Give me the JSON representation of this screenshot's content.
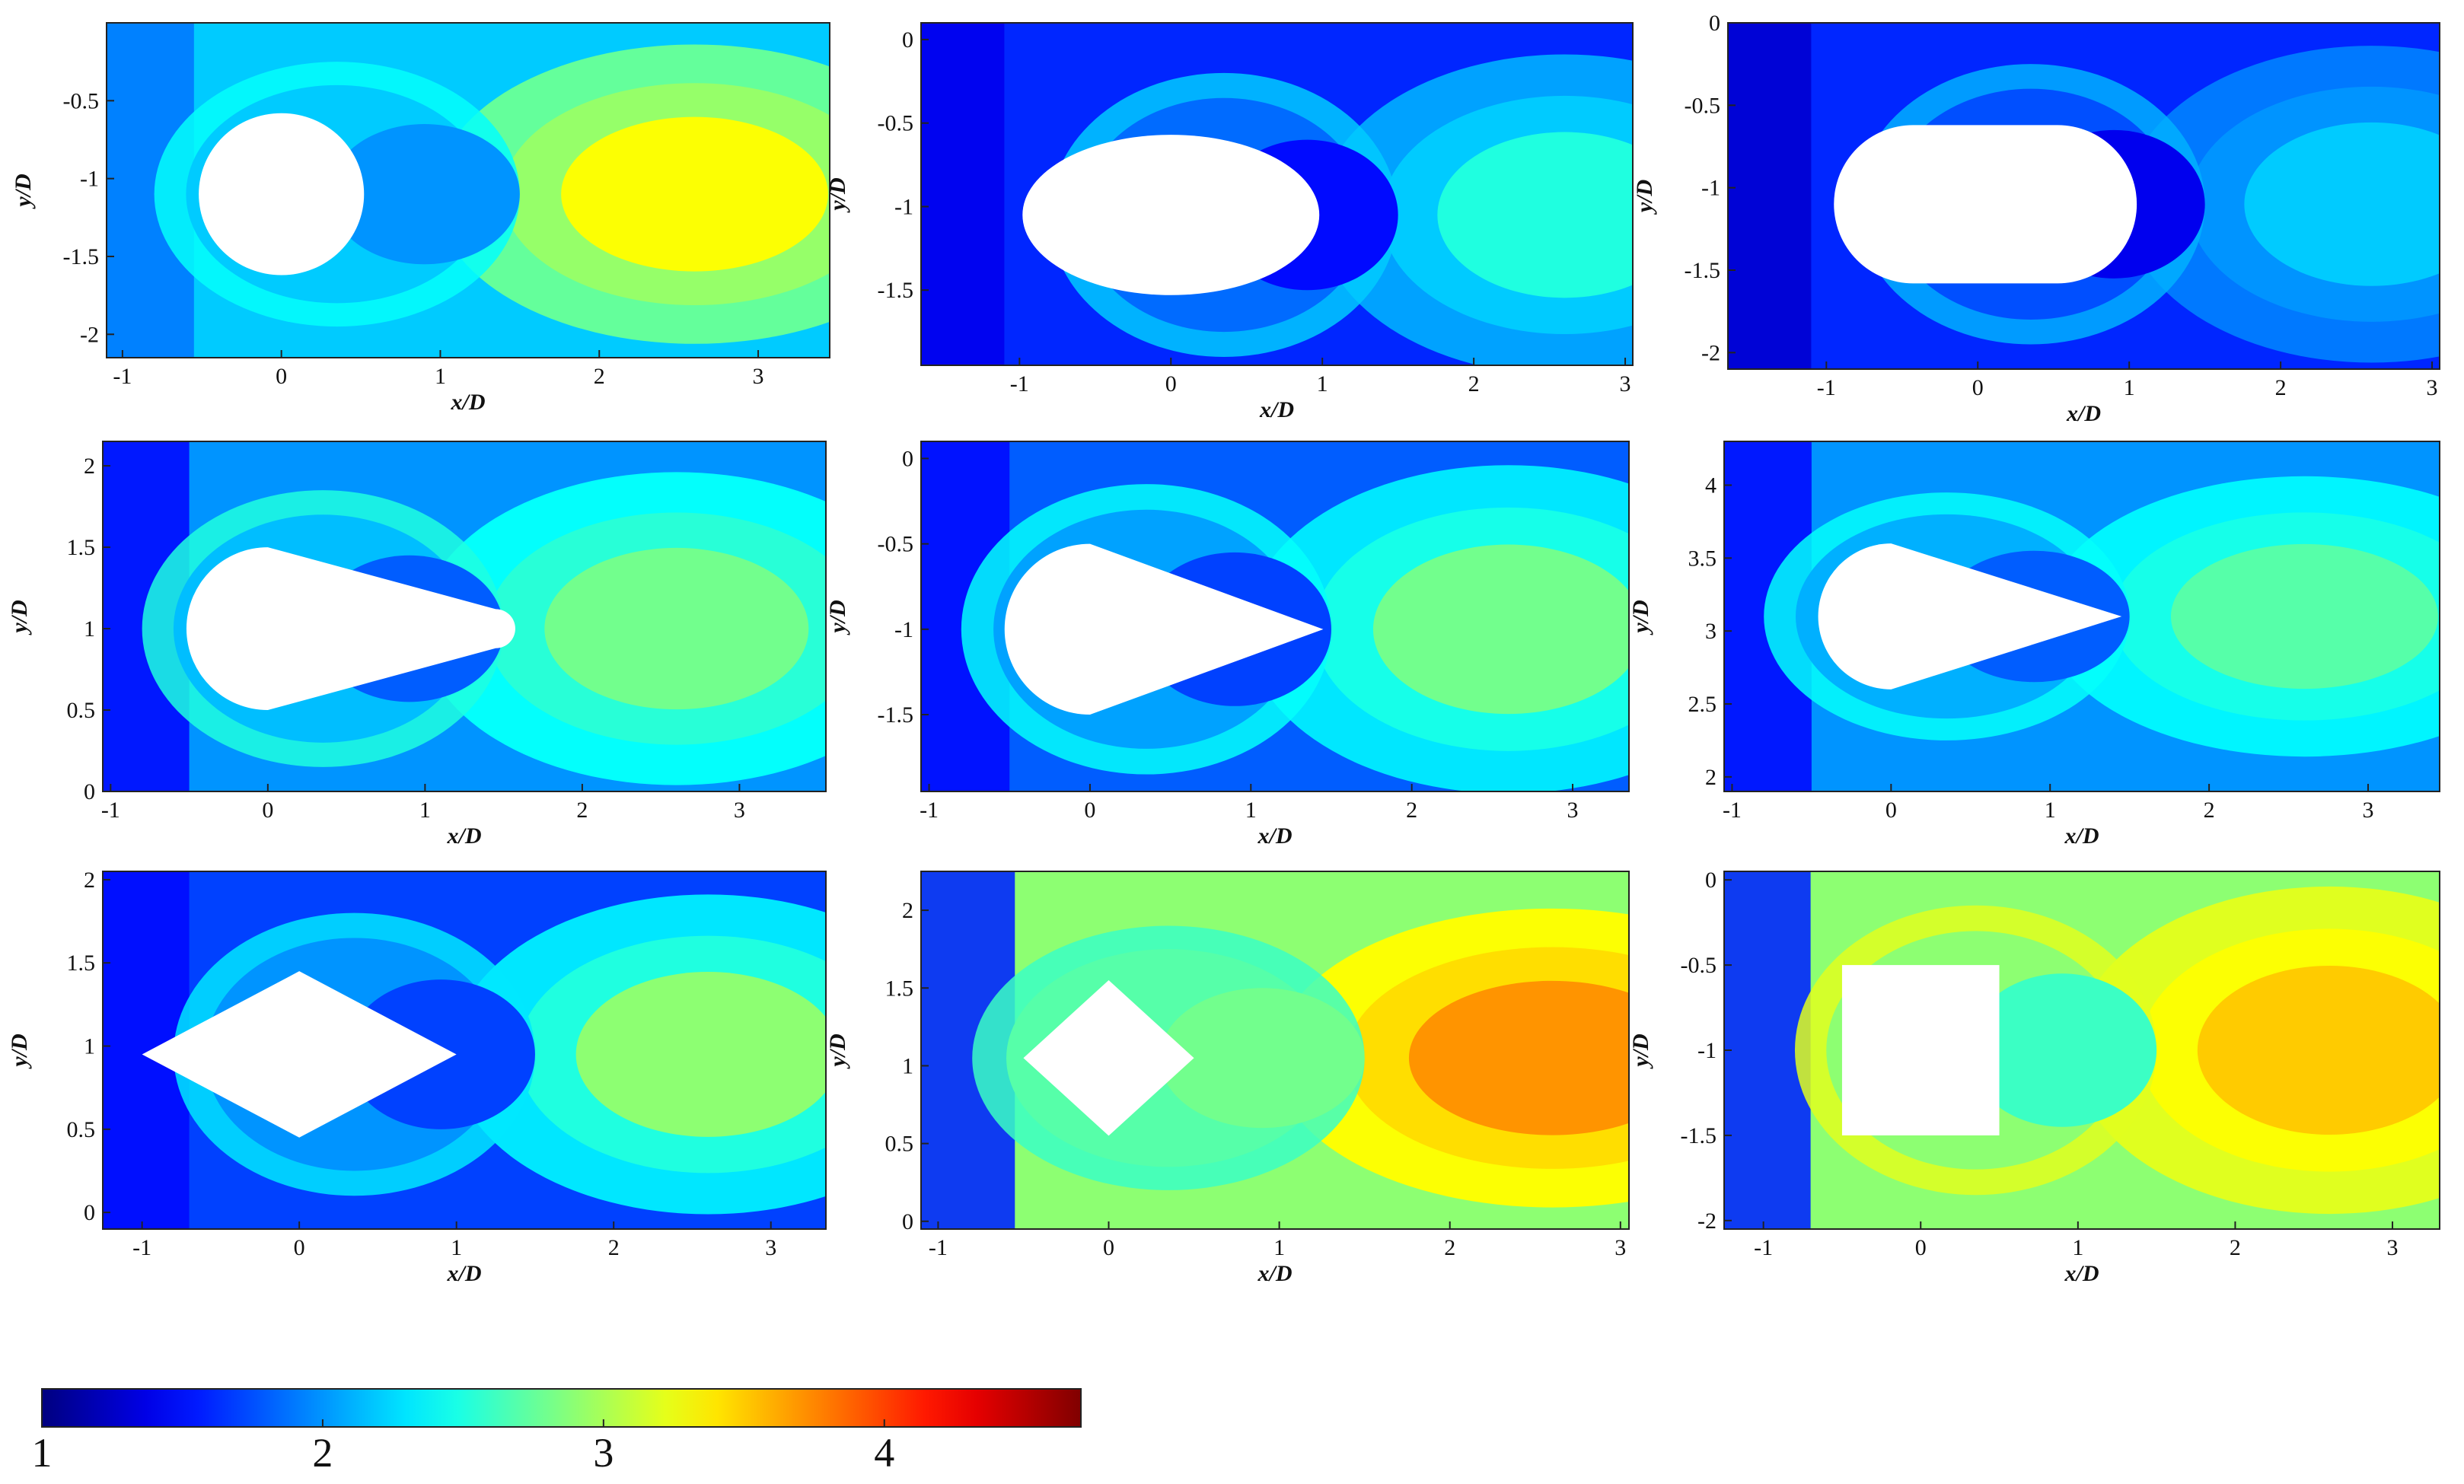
{
  "chart_data": [
    {
      "type": "heatmap",
      "shape": "circle",
      "xlabel": "x/D",
      "ylabel": "y/D",
      "xlim": [
        -1.1,
        3.45
      ],
      "ylim": [
        -2.15,
        0
      ],
      "xticks": [
        -1,
        0,
        1,
        2,
        3
      ],
      "yticks": [
        -0.5,
        -1,
        -1.5,
        -2
      ],
      "obstacle_center": [
        0,
        -1.1
      ],
      "levels": {
        "upstream": 1.9,
        "near_body": 2.4,
        "wake_deficit": 2.0,
        "downstream_core": 3.3,
        "background": 2.2
      }
    },
    {
      "type": "heatmap",
      "shape": "ellipse",
      "xlabel": "x/D",
      "ylabel": "y/D",
      "xlim": [
        -1.65,
        3.05
      ],
      "ylim": [
        -1.95,
        0.1
      ],
      "xticks": [
        -1,
        0,
        1,
        2,
        3
      ],
      "yticks": [
        0,
        -0.5,
        -1,
        -1.5
      ],
      "obstacle_center": [
        0,
        -1.05
      ],
      "levels": {
        "upstream": 1.4,
        "near_body": 2.2,
        "wake_deficit": 1.5,
        "downstream_core": 2.5,
        "background": 1.6
      }
    },
    {
      "type": "heatmap",
      "shape": "stadium",
      "xlabel": "x/D",
      "ylabel": "y/D",
      "xlim": [
        -1.65,
        3.05
      ],
      "ylim": [
        -2.1,
        0
      ],
      "xticks": [
        -1,
        0,
        1,
        2,
        3
      ],
      "yticks": [
        0,
        -0.5,
        -1,
        -1.5,
        -2
      ],
      "obstacle_center": [
        0,
        -1.1
      ],
      "levels": {
        "upstream": 1.3,
        "near_body": 2.1,
        "wake_deficit": 1.4,
        "downstream_core": 2.2,
        "background": 1.6
      }
    },
    {
      "type": "heatmap",
      "shape": "teardrop-blunt",
      "xlabel": "x/D",
      "ylabel": "y/D",
      "xlim": [
        -1.05,
        3.55
      ],
      "ylim": [
        0,
        2.15
      ],
      "xticks": [
        -1,
        0,
        1,
        2,
        3
      ],
      "yticks": [
        0,
        0.5,
        1,
        1.5,
        2
      ],
      "obstacle_center": [
        0,
        1
      ],
      "levels": {
        "upstream": 1.5,
        "near_body": 2.5,
        "wake_deficit": 1.8,
        "downstream_core": 2.8,
        "background": 2.0
      }
    },
    {
      "type": "heatmap",
      "shape": "teardrop",
      "xlabel": "x/D",
      "ylabel": "y/D",
      "xlim": [
        -1.05,
        3.35
      ],
      "ylim": [
        -1.95,
        0.1
      ],
      "xticks": [
        -1,
        0,
        1,
        2,
        3
      ],
      "yticks": [
        0,
        -0.5,
        -1,
        -1.5
      ],
      "obstacle_center": [
        0,
        -1
      ],
      "levels": {
        "upstream": 1.5,
        "near_body": 2.4,
        "wake_deficit": 1.7,
        "downstream_core": 2.8,
        "background": 1.8
      }
    },
    {
      "type": "heatmap",
      "shape": "teardrop",
      "xlabel": "x/D",
      "ylabel": "y/D",
      "xlim": [
        -1.05,
        3.45
      ],
      "ylim": [
        1.9,
        4.3
      ],
      "xticks": [
        -1,
        0,
        1,
        2,
        3
      ],
      "yticks": [
        2,
        2.5,
        3,
        3.5,
        4
      ],
      "obstacle_center": [
        0,
        3.1
      ],
      "levels": {
        "upstream": 1.5,
        "near_body": 2.4,
        "wake_deficit": 1.8,
        "downstream_core": 2.7,
        "background": 2.0
      }
    },
    {
      "type": "heatmap",
      "shape": "diamond-wide",
      "xlabel": "x/D",
      "ylabel": "y/D",
      "xlim": [
        -1.25,
        3.35
      ],
      "ylim": [
        -0.1,
        2.05
      ],
      "xticks": [
        -1,
        0,
        1,
        2,
        3
      ],
      "yticks": [
        0,
        0.5,
        1,
        1.5,
        2
      ],
      "obstacle_center": [
        0,
        0.95
      ],
      "levels": {
        "upstream": 1.5,
        "near_body": 2.3,
        "wake_deficit": 1.7,
        "downstream_core": 2.9,
        "background": 1.7
      }
    },
    {
      "type": "heatmap",
      "shape": "diamond-square",
      "xlabel": "x/D",
      "ylabel": "y/D",
      "xlim": [
        -1.1,
        3.05
      ],
      "ylim": [
        -0.05,
        2.25
      ],
      "xticks": [
        -1,
        0,
        1,
        2,
        3
      ],
      "yticks": [
        0,
        0.5,
        1,
        1.5,
        2
      ],
      "obstacle_center": [
        0,
        1.05
      ],
      "levels": {
        "upstream": 1.6,
        "near_body": 2.6,
        "wake_deficit": 2.8,
        "downstream_core": 3.7,
        "background": 2.9
      }
    },
    {
      "type": "heatmap",
      "shape": "square",
      "xlabel": "x/D",
      "ylabel": "y/D",
      "xlim": [
        -1.25,
        3.3
      ],
      "ylim": [
        -2.05,
        0.05
      ],
      "xticks": [
        -1,
        0,
        1,
        2,
        3
      ],
      "yticks": [
        0,
        -0.5,
        -1,
        -1.5,
        -2
      ],
      "obstacle_center": [
        0,
        -1
      ],
      "levels": {
        "upstream": 1.6,
        "near_body": 3.2,
        "wake_deficit": 2.6,
        "downstream_core": 3.5,
        "background": 2.9
      }
    }
  ],
  "colorbar": {
    "min": 1,
    "max": 4.7,
    "ticks": [
      1,
      2,
      3,
      4
    ],
    "colormap": "jet"
  }
}
